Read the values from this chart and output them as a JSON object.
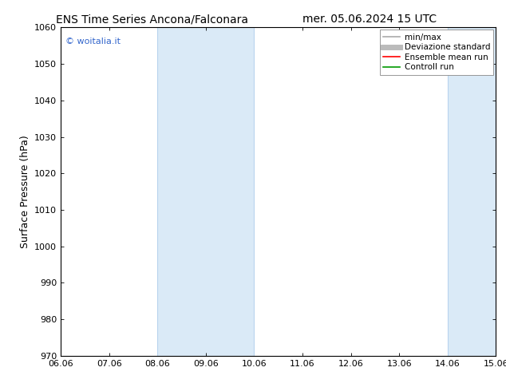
{
  "title_left": "ENS Time Series Ancona/Falconara",
  "title_right": "mer. 05.06.2024 15 UTC",
  "ylabel": "Surface Pressure (hPa)",
  "ylim": [
    970,
    1060
  ],
  "yticks": [
    970,
    980,
    990,
    1000,
    1010,
    1020,
    1030,
    1040,
    1050,
    1060
  ],
  "xlabels": [
    "06.06",
    "07.06",
    "08.06",
    "09.06",
    "10.06",
    "11.06",
    "12.06",
    "13.06",
    "14.06",
    "15.06"
  ],
  "xvalues": [
    0,
    1,
    2,
    3,
    4,
    5,
    6,
    7,
    8,
    9
  ],
  "shaded_bands": [
    {
      "xmin": 2,
      "xmax": 4,
      "color": "#daeaf7",
      "border_color": "#b8d4ee"
    },
    {
      "xmin": 8,
      "xmax": 9,
      "color": "#daeaf7",
      "border_color": "#b8d4ee"
    }
  ],
  "copyright_text": "© woitalia.it",
  "copyright_color": "#3366cc",
  "background_color": "#ffffff",
  "legend_entries": [
    {
      "label": "min/max",
      "color": "#aaaaaa",
      "lw": 1.2
    },
    {
      "label": "Deviazione standard",
      "color": "#bbbbbb",
      "lw": 5
    },
    {
      "label": "Ensemble mean run",
      "color": "#ff0000",
      "lw": 1.2
    },
    {
      "label": "Controll run",
      "color": "#009900",
      "lw": 1.2
    }
  ],
  "title_fontsize": 10,
  "ylabel_fontsize": 9,
  "tick_fontsize": 8,
  "legend_fontsize": 7.5,
  "copyright_fontsize": 8,
  "figsize": [
    6.34,
    4.9
  ],
  "dpi": 100
}
